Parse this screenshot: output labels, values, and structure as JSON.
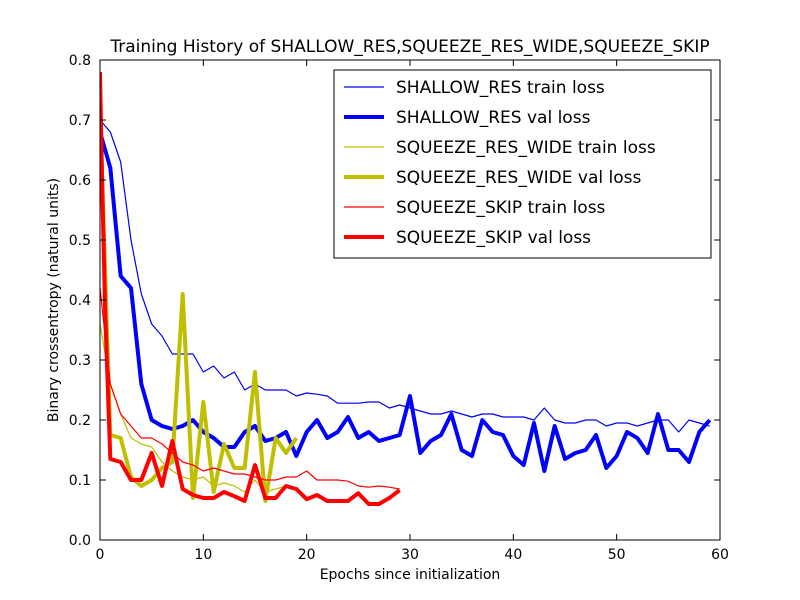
{
  "chart_data": {
    "type": "line",
    "title": "Training History of SHALLOW_RES,SQUEEZE_RES_WIDE,SQUEEZE_SKIP",
    "xlabel": "Epochs since initialization",
    "ylabel": "Binary crossentropy (natural units)",
    "xlim": [
      0,
      60
    ],
    "ylim": [
      0.0,
      0.8
    ],
    "xticks": [
      0,
      10,
      20,
      30,
      40,
      50,
      60
    ],
    "yticks": [
      0.0,
      0.1,
      0.2,
      0.3,
      0.4,
      0.5,
      0.6,
      0.7,
      0.8
    ],
    "xtick_labels": [
      "0",
      "10",
      "20",
      "30",
      "40",
      "50",
      "60"
    ],
    "ytick_labels": [
      "0.0",
      "0.1",
      "0.2",
      "0.3",
      "0.4",
      "0.5",
      "0.6",
      "0.7",
      "0.8"
    ],
    "grid": false,
    "legend_position": "top-right",
    "series": [
      {
        "name": "SHALLOW_RES train loss",
        "color": "#0000ff",
        "style": "thin",
        "x": [
          0,
          1,
          2,
          3,
          4,
          5,
          6,
          7,
          8,
          9,
          10,
          11,
          12,
          13,
          14,
          15,
          16,
          17,
          18,
          19,
          20,
          21,
          22,
          23,
          24,
          25,
          26,
          27,
          28,
          29,
          30,
          31,
          32,
          33,
          34,
          35,
          36,
          37,
          38,
          39,
          40,
          41,
          42,
          43,
          44,
          45,
          46,
          47,
          48,
          49,
          50,
          51,
          52,
          53,
          54,
          55,
          56,
          57,
          58,
          59
        ],
        "y": [
          0.7,
          0.68,
          0.63,
          0.5,
          0.41,
          0.36,
          0.34,
          0.31,
          0.31,
          0.31,
          0.28,
          0.29,
          0.27,
          0.28,
          0.25,
          0.26,
          0.25,
          0.25,
          0.25,
          0.24,
          0.245,
          0.243,
          0.24,
          0.228,
          0.228,
          0.228,
          0.23,
          0.23,
          0.22,
          0.225,
          0.22,
          0.215,
          0.21,
          0.21,
          0.215,
          0.21,
          0.205,
          0.21,
          0.21,
          0.205,
          0.205,
          0.205,
          0.2,
          0.22,
          0.2,
          0.195,
          0.195,
          0.2,
          0.2,
          0.19,
          0.195,
          0.195,
          0.19,
          0.195,
          0.2,
          0.2,
          0.18,
          0.2,
          0.195,
          0.19
        ]
      },
      {
        "name": "SHALLOW_RES val loss",
        "color": "#0000ff",
        "style": "thick",
        "x": [
          0,
          1,
          2,
          3,
          4,
          5,
          6,
          7,
          8,
          9,
          10,
          11,
          12,
          13,
          14,
          15,
          16,
          17,
          18,
          19,
          20,
          21,
          22,
          23,
          24,
          25,
          26,
          27,
          28,
          29,
          30,
          31,
          32,
          33,
          34,
          35,
          36,
          37,
          38,
          39,
          40,
          41,
          42,
          43,
          44,
          45,
          46,
          47,
          48,
          49,
          50,
          51,
          52,
          53,
          54,
          55,
          56,
          57,
          58,
          59
        ],
        "y": [
          0.68,
          0.62,
          0.44,
          0.42,
          0.26,
          0.2,
          0.19,
          0.185,
          0.19,
          0.2,
          0.18,
          0.17,
          0.155,
          0.155,
          0.18,
          0.19,
          0.165,
          0.17,
          0.18,
          0.14,
          0.18,
          0.2,
          0.17,
          0.18,
          0.205,
          0.17,
          0.18,
          0.165,
          0.17,
          0.175,
          0.24,
          0.145,
          0.165,
          0.175,
          0.21,
          0.15,
          0.14,
          0.2,
          0.18,
          0.175,
          0.14,
          0.125,
          0.195,
          0.115,
          0.19,
          0.135,
          0.145,
          0.15,
          0.175,
          0.12,
          0.14,
          0.18,
          0.17,
          0.145,
          0.21,
          0.15,
          0.15,
          0.13,
          0.18,
          0.2
        ]
      },
      {
        "name": "SQUEEZE_RES_WIDE train loss",
        "color": "#bfbf00",
        "style": "thin",
        "x": [
          0,
          1,
          2,
          3,
          4,
          5,
          6,
          7,
          8,
          9,
          10,
          11,
          12,
          13,
          14,
          15,
          16,
          17,
          18,
          19
        ],
        "y": [
          0.36,
          0.26,
          0.21,
          0.17,
          0.16,
          0.155,
          0.13,
          0.115,
          0.105,
          0.1,
          0.105,
          0.09,
          0.095,
          0.09,
          0.08,
          0.1,
          0.08,
          0.085,
          0.09,
          0.085
        ]
      },
      {
        "name": "SQUEEZE_RES_WIDE val loss",
        "color": "#bfbf00",
        "style": "thick",
        "x": [
          0,
          1,
          2,
          3,
          4,
          5,
          6,
          7,
          8,
          9,
          10,
          11,
          12,
          13,
          14,
          15,
          16,
          17,
          18,
          19
        ],
        "y": [
          0.72,
          0.175,
          0.17,
          0.105,
          0.09,
          0.1,
          0.12,
          0.13,
          0.41,
          0.07,
          0.23,
          0.08,
          0.16,
          0.12,
          0.12,
          0.28,
          0.065,
          0.17,
          0.145,
          0.17
        ]
      },
      {
        "name": "SQUEEZE_SKIP train loss",
        "color": "#ff0000",
        "style": "thin",
        "x": [
          0,
          1,
          2,
          3,
          4,
          5,
          6,
          7,
          8,
          9,
          10,
          11,
          12,
          13,
          14,
          15,
          16,
          17,
          18,
          19,
          20,
          21,
          22,
          23,
          24,
          25,
          26,
          27,
          28,
          29
        ],
        "y": [
          0.42,
          0.26,
          0.21,
          0.19,
          0.17,
          0.17,
          0.16,
          0.145,
          0.13,
          0.125,
          0.115,
          0.12,
          0.115,
          0.11,
          0.11,
          0.105,
          0.1,
          0.1,
          0.105,
          0.105,
          0.115,
          0.1,
          0.1,
          0.1,
          0.098,
          0.09,
          0.088,
          0.09,
          0.088,
          0.085
        ]
      },
      {
        "name": "SQUEEZE_SKIP val loss",
        "color": "#ff0000",
        "style": "thick",
        "x": [
          0,
          0.2,
          0.5,
          1,
          2,
          3,
          4,
          5,
          6,
          7,
          8,
          9,
          10,
          11,
          12,
          13,
          14,
          15,
          16,
          17,
          18,
          19,
          20,
          21,
          22,
          23,
          24,
          25,
          26,
          27,
          28,
          29
        ],
        "y": [
          0.78,
          0.6,
          0.38,
          0.135,
          0.13,
          0.1,
          0.1,
          0.145,
          0.09,
          0.165,
          0.085,
          0.075,
          0.07,
          0.07,
          0.08,
          0.073,
          0.065,
          0.125,
          0.07,
          0.07,
          0.09,
          0.085,
          0.068,
          0.075,
          0.065,
          0.065,
          0.065,
          0.078,
          0.06,
          0.06,
          0.07,
          0.083
        ]
      }
    ]
  }
}
